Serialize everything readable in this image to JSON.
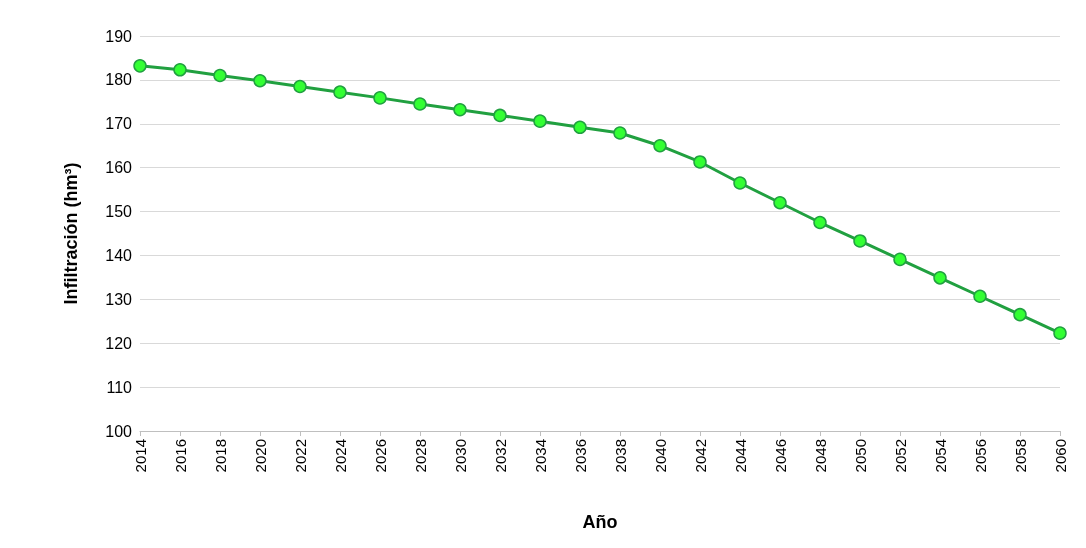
{
  "chart_data": {
    "type": "line",
    "xlabel": "Año",
    "ylabel": "Infiltración (hm³)",
    "categories": [
      "2014",
      "2016",
      "2018",
      "2020",
      "2022",
      "2024",
      "2026",
      "2028",
      "2030",
      "2032",
      "2034",
      "2036",
      "2038",
      "2040",
      "2042",
      "2044",
      "2046",
      "2048",
      "2050",
      "2052",
      "2054",
      "2056",
      "2058",
      "2060"
    ],
    "series": [
      {
        "color": "#21a040",
        "values": [
          183.2,
          182.3,
          181,
          179.8,
          178.5,
          177.2,
          175.9,
          174.5,
          173.2,
          171.9,
          170.6,
          169.2,
          167.9,
          165,
          161.3,
          156.5,
          152,
          147.5,
          143.3,
          139.1,
          134.9,
          130.7,
          126.5,
          122.3
        ]
      }
    ],
    "ylim": [
      100,
      190
    ],
    "yticks": [
      100,
      110,
      120,
      130,
      140,
      150,
      160,
      170,
      180,
      190
    ],
    "grid": "y",
    "marker": "circle",
    "line_style": "solid"
  }
}
